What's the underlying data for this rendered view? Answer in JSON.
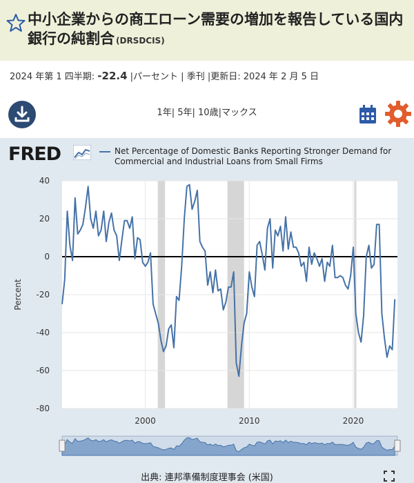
{
  "header": {
    "title": "中小企業からの商工ローン需要の増加を報告している国内銀行の純割合",
    "series_id": "(DRSDCIS)"
  },
  "meta": {
    "period": "2024 年第 1 四半期:",
    "value": "-22.4",
    "units": "|パーセント | 季刊 |更新日: 2024 年 2 月 5 日"
  },
  "toolbar": {
    "ranges": [
      "1年",
      "5年",
      "10歳",
      "マックス"
    ]
  },
  "logo": {
    "text": "FRED"
  },
  "legend": {
    "text": "Net Percentage of Domestic Banks Reporting Stronger Demand for Commercial and Industrial Loans from Small Firms"
  },
  "chart_data": {
    "type": "line",
    "ylabel": "Percent",
    "xlabel": "",
    "ylim": [
      -80,
      40
    ],
    "xlim": [
      1992.0,
      2024.25
    ],
    "yticks": [
      40,
      20,
      0,
      -20,
      -40,
      -60,
      -80
    ],
    "xticks": [
      2000,
      2010,
      2020
    ],
    "zero_line": true,
    "recessions": [
      [
        2001.2,
        2001.9
      ],
      [
        2007.9,
        2009.5
      ],
      [
        2020.1,
        2020.3
      ]
    ],
    "colors": {
      "line": "#4572a7",
      "recession": "#d6d6d6",
      "zero": "#000000"
    },
    "series": [
      {
        "name": "Net Percentage of Domestic Banks Reporting Stronger Demand for Commercial and Industrial Loans from Small Firms",
        "x": [
          1992.0,
          1992.25,
          1992.5,
          1992.75,
          1993.0,
          1993.25,
          1993.5,
          1993.75,
          1994.0,
          1994.25,
          1994.5,
          1994.75,
          1995.0,
          1995.25,
          1995.5,
          1995.75,
          1996.0,
          1996.25,
          1996.5,
          1996.75,
          1997.0,
          1997.25,
          1997.5,
          1997.75,
          1998.0,
          1998.25,
          1998.5,
          1998.75,
          1999.0,
          1999.25,
          1999.5,
          1999.75,
          2000.0,
          2000.25,
          2000.5,
          2000.75,
          2001.0,
          2001.25,
          2001.5,
          2001.75,
          2002.0,
          2002.25,
          2002.5,
          2002.75,
          2003.0,
          2003.25,
          2003.5,
          2003.75,
          2004.0,
          2004.25,
          2004.5,
          2004.75,
          2005.0,
          2005.25,
          2005.5,
          2005.75,
          2006.0,
          2006.25,
          2006.5,
          2006.75,
          2007.0,
          2007.25,
          2007.5,
          2007.75,
          2008.0,
          2008.25,
          2008.5,
          2008.75,
          2009.0,
          2009.25,
          2009.5,
          2009.75,
          2010.0,
          2010.25,
          2010.5,
          2010.75,
          2011.0,
          2011.25,
          2011.5,
          2011.75,
          2012.0,
          2012.25,
          2012.5,
          2012.75,
          2013.0,
          2013.25,
          2013.5,
          2013.75,
          2014.0,
          2014.25,
          2014.5,
          2014.75,
          2015.0,
          2015.25,
          2015.5,
          2015.75,
          2016.0,
          2016.25,
          2016.5,
          2016.75,
          2017.0,
          2017.25,
          2017.5,
          2017.75,
          2018.0,
          2018.25,
          2018.5,
          2018.75,
          2019.0,
          2019.25,
          2019.5,
          2019.75,
          2020.0,
          2020.25,
          2020.5,
          2020.75,
          2021.0,
          2021.25,
          2021.5,
          2021.75,
          2022.0,
          2022.25,
          2022.5,
          2022.75,
          2023.0,
          2023.25,
          2023.5,
          2023.75,
          2024.0
        ],
        "values": [
          -25,
          -12,
          24,
          6,
          -2,
          31,
          12,
          14,
          17,
          26,
          37,
          20,
          15,
          24,
          11,
          14,
          24,
          8,
          18,
          23,
          14,
          11,
          -2,
          9,
          19,
          19,
          15,
          21,
          -1,
          10,
          9,
          -3,
          -5,
          -3,
          2,
          -25,
          -30,
          -35,
          -44,
          -50,
          -47,
          -38,
          -36,
          -48,
          -21,
          -23,
          -5,
          20,
          37,
          38,
          25,
          29,
          35,
          8,
          5,
          3,
          -15,
          -8,
          -19,
          -7,
          -18,
          -17,
          -28,
          -24,
          -16,
          -16,
          -8,
          -56,
          -63,
          -47,
          -35,
          -30,
          -8,
          -16,
          -21,
          6,
          8,
          1,
          -7,
          15,
          20,
          -6,
          14,
          11,
          16,
          3,
          21,
          4,
          13,
          5,
          5,
          2,
          -5,
          -3,
          -13,
          5,
          -4,
          2,
          -1,
          -5,
          -1,
          -13,
          -3,
          -5,
          6,
          -11,
          -11,
          -10,
          -11,
          -15,
          -17,
          -10,
          5,
          -30,
          -40,
          -45,
          -31,
          0,
          6,
          -6,
          -4,
          17,
          17,
          -30,
          -43,
          -53,
          -47,
          -49,
          -22.4
        ]
      }
    ]
  }
}
